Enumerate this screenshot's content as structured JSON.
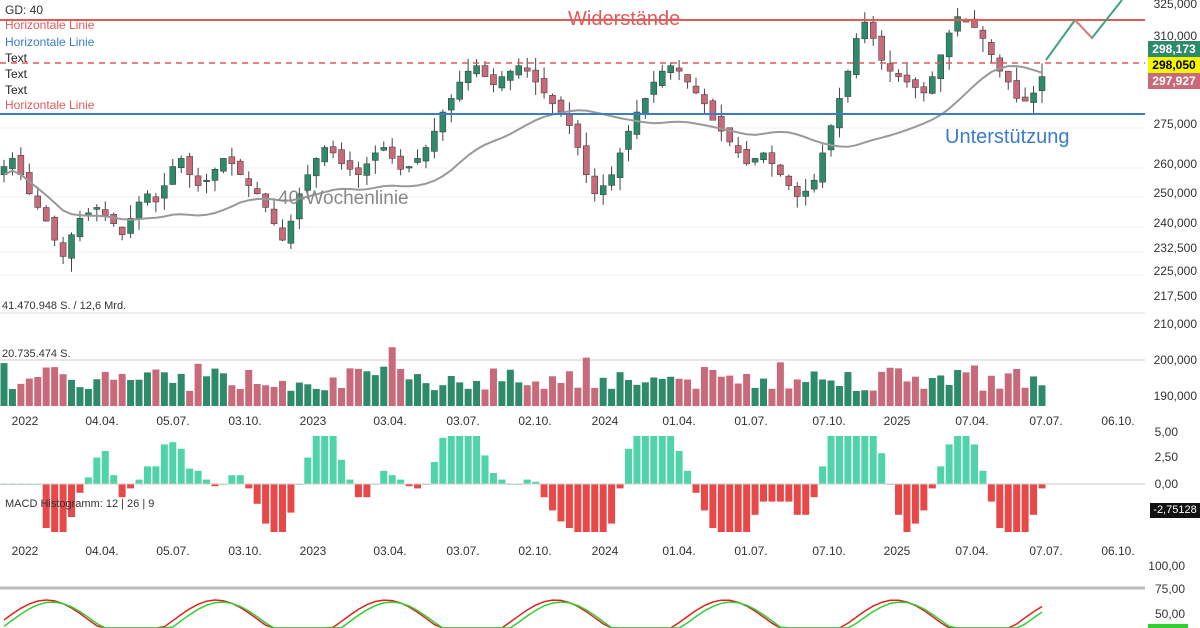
{
  "header": {
    "gd_label": "GD: 40",
    "legend": [
      {
        "text": "Horizontale Linie",
        "color": "#e05a5a"
      },
      {
        "text": "Horizontale Linie",
        "color": "#3a7cc9"
      },
      {
        "text": "Text",
        "color": "#222222"
      },
      {
        "text": "Text",
        "color": "#222222"
      },
      {
        "text": "Text",
        "color": "#222222"
      },
      {
        "text": "Horizontale Linie",
        "color": "#e05a5a"
      }
    ]
  },
  "annotations": {
    "resistance": "Widerstände",
    "support": "Unterstützung",
    "ma_label": "40-Wochenlinie",
    "volume_total": "41.470.948 S. / 12,6 Mrd.",
    "volume_avg": "20.735.474 S.",
    "macd_title": "MACD Histogramm: 12 | 26 | 9"
  },
  "badges": {
    "last_price": "298,173",
    "dashed_level": "298,050",
    "close_level": "297,927",
    "macd_value": "-2,75128"
  },
  "colors": {
    "up": "#2e8b6a",
    "down": "#c96a7a",
    "resistance": "#e05a5a",
    "support": "#3a7cc9",
    "ma": "#999999",
    "macd_pos": "#4fd3a8",
    "macd_neg": "#e84848",
    "stoch_k": "#e02020",
    "stoch_d": "#30d030"
  },
  "chart_data": {
    "type": "candlestick",
    "price_ticks": [
      "325,000",
      "310,000",
      "298,173",
      "298,050",
      "297,927",
      "275,000",
      "260,000",
      "250,000",
      "240,000",
      "232,500",
      "225,000",
      "217,500"
    ],
    "volume_ticks": [
      "210,000",
      "200,000",
      "190,000"
    ],
    "macd_ticks": [
      "5,00",
      "2,50",
      "0,00",
      "-2,75128"
    ],
    "stoch_ticks": [
      "100,00",
      "75,00",
      "50,00"
    ],
    "x_ticks": [
      "2022",
      "04.04.",
      "05.07.",
      "03.10.",
      "2023",
      "03.04.",
      "03.07.",
      "02.10.",
      "2024",
      "01.04.",
      "01.07.",
      "07.10.",
      "2025",
      "07.04.",
      "07.07.",
      "06.10."
    ],
    "horizontal_lines": {
      "resistance": 320,
      "dashed": 298.05,
      "support": 276.5
    },
    "close_series": [
      265,
      268,
      262,
      255,
      250,
      245,
      238,
      232,
      240,
      246,
      248,
      250,
      247,
      244,
      240,
      246,
      252,
      255,
      252,
      258,
      265,
      268,
      262,
      258,
      260,
      264,
      268,
      266,
      262,
      258,
      255,
      250,
      244,
      238,
      245,
      255,
      262,
      268,
      272,
      270,
      266,
      264,
      262,
      266,
      270,
      272,
      268,
      264,
      265,
      268,
      272,
      278,
      285,
      290,
      296,
      300,
      302,
      298,
      295,
      298,
      300,
      302,
      300,
      296,
      292,
      288,
      285,
      280,
      272,
      262,
      255,
      258,
      262,
      270,
      278,
      285,
      290,
      296,
      300,
      302,
      300,
      296,
      292,
      288,
      282,
      278,
      274,
      270,
      266,
      268,
      270,
      266,
      262,
      258,
      254,
      256,
      260,
      270,
      280,
      290,
      300,
      312,
      318,
      312,
      304,
      300,
      298,
      296,
      294,
      292,
      298,
      306,
      314,
      320,
      318,
      316,
      312,
      306,
      300,
      296,
      290,
      289,
      292,
      298
    ]
  }
}
